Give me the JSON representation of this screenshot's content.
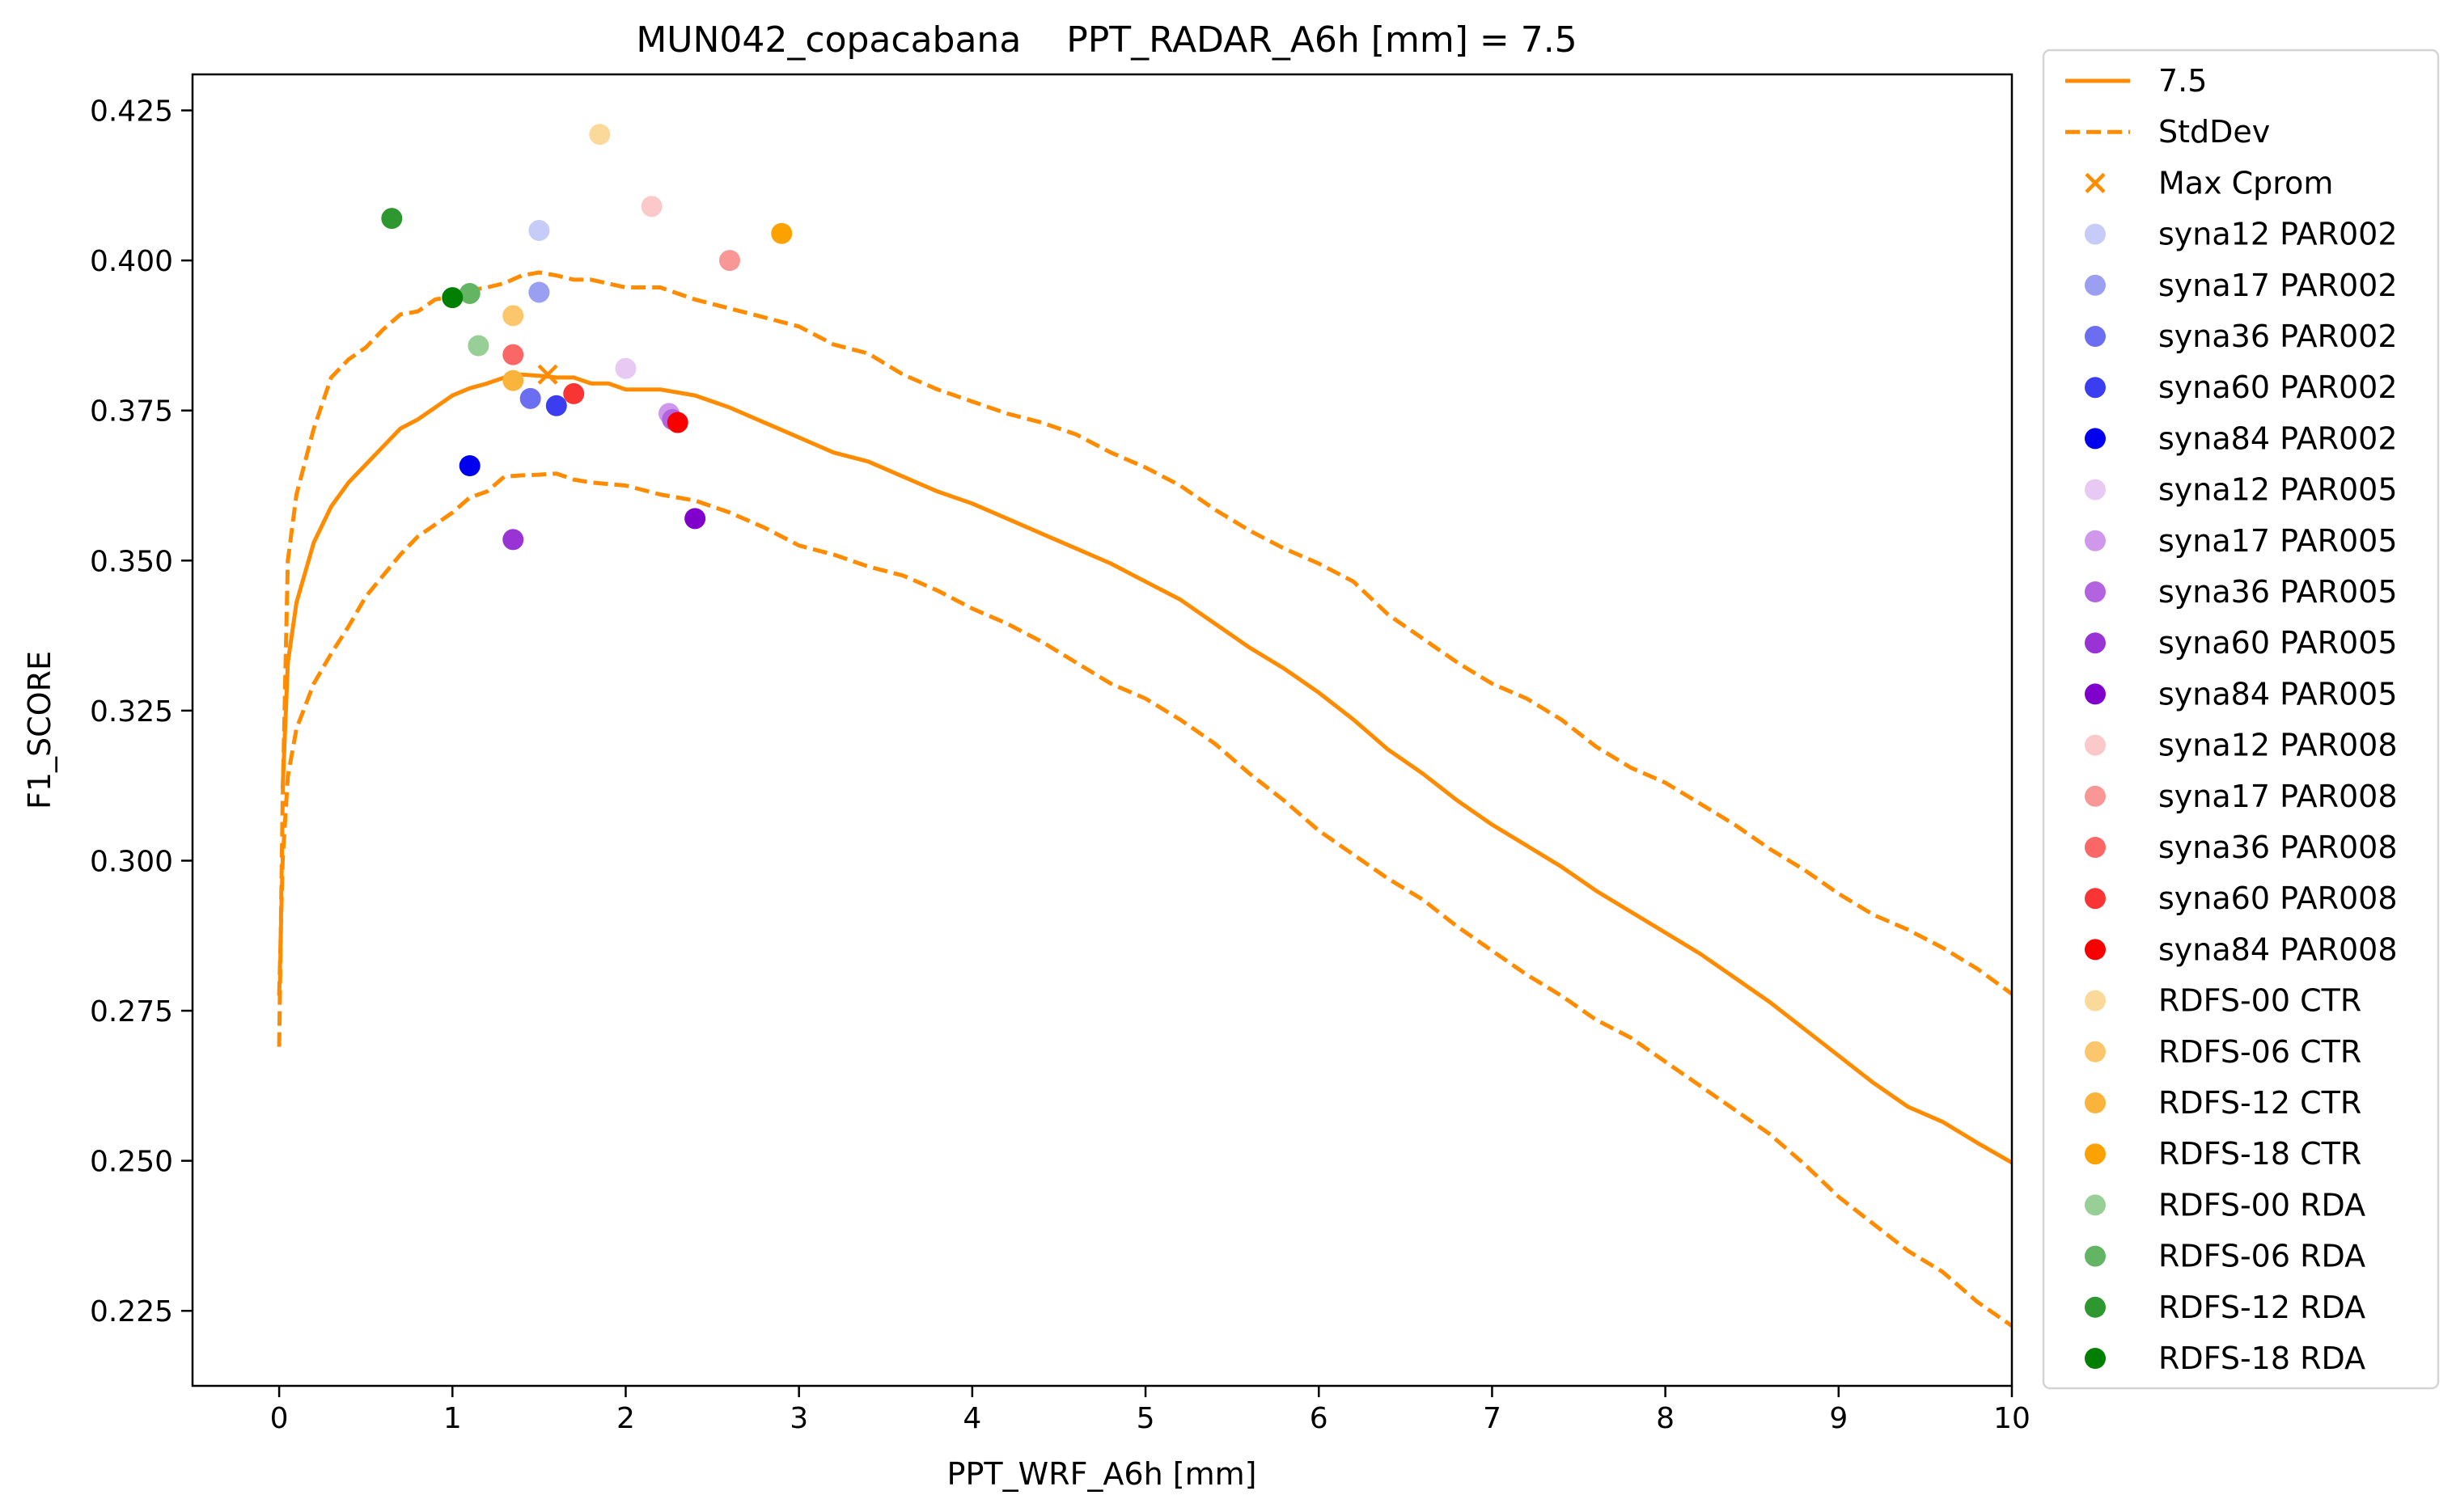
{
  "chart_data": {
    "type": "line",
    "title": "MUN042_copacabana    PPT_RADAR_A6h [mm] = 7.5",
    "xlabel": "PPT_WRF_A6h [mm]",
    "ylabel": "F1_SCORE",
    "xlim": [
      -0.5,
      10
    ],
    "ylim": [
      0.2125,
      0.431
    ],
    "xticks": [
      0,
      1,
      2,
      3,
      4,
      5,
      6,
      7,
      8,
      9,
      10
    ],
    "yticks": [
      0.225,
      0.25,
      0.275,
      0.3,
      0.325,
      0.35,
      0.375,
      0.4,
      0.425
    ],
    "ytick_labels": [
      "0.225",
      "0.250",
      "0.275",
      "0.300",
      "0.325",
      "0.350",
      "0.375",
      "0.400",
      "0.425"
    ],
    "grid": false,
    "legend_position": "outside-right",
    "lines": [
      {
        "name": "7.5",
        "style": "solid",
        "color": "#ff8c00",
        "points": [
          [
            0.02,
            0.312
          ],
          [
            0.05,
            0.333
          ],
          [
            0.1,
            0.343
          ],
          [
            0.2,
            0.353
          ],
          [
            0.3,
            0.359
          ],
          [
            0.4,
            0.363
          ],
          [
            0.5,
            0.366
          ],
          [
            0.6,
            0.369
          ],
          [
            0.7,
            0.372
          ],
          [
            0.8,
            0.3735
          ],
          [
            0.9,
            0.3755
          ],
          [
            1.0,
            0.3775
          ],
          [
            1.1,
            0.3787
          ],
          [
            1.2,
            0.3795
          ],
          [
            1.3,
            0.3805
          ],
          [
            1.4,
            0.381
          ],
          [
            1.5,
            0.3808
          ],
          [
            1.6,
            0.3805
          ],
          [
            1.7,
            0.3805
          ],
          [
            1.8,
            0.3795
          ],
          [
            1.9,
            0.3795
          ],
          [
            2.0,
            0.3785
          ],
          [
            2.2,
            0.3785
          ],
          [
            2.4,
            0.3775
          ],
          [
            2.6,
            0.3755
          ],
          [
            2.8,
            0.373
          ],
          [
            3.0,
            0.3705
          ],
          [
            3.2,
            0.368
          ],
          [
            3.4,
            0.3665
          ],
          [
            3.6,
            0.364
          ],
          [
            3.8,
            0.3615
          ],
          [
            4.0,
            0.3595
          ],
          [
            4.2,
            0.357
          ],
          [
            4.4,
            0.3545
          ],
          [
            4.6,
            0.352
          ],
          [
            4.8,
            0.3495
          ],
          [
            5.0,
            0.3465
          ],
          [
            5.2,
            0.3435
          ],
          [
            5.4,
            0.3395
          ],
          [
            5.6,
            0.3355
          ],
          [
            5.8,
            0.332
          ],
          [
            6.0,
            0.328
          ],
          [
            6.2,
            0.3235
          ],
          [
            6.4,
            0.3185
          ],
          [
            6.6,
            0.3145
          ],
          [
            6.8,
            0.31
          ],
          [
            7.0,
            0.306
          ],
          [
            7.2,
            0.3025
          ],
          [
            7.4,
            0.299
          ],
          [
            7.6,
            0.295
          ],
          [
            7.8,
            0.2915
          ],
          [
            8.0,
            0.288
          ],
          [
            8.2,
            0.2845
          ],
          [
            8.4,
            0.2805
          ],
          [
            8.6,
            0.2765
          ],
          [
            8.8,
            0.272
          ],
          [
            9.0,
            0.2675
          ],
          [
            9.2,
            0.263
          ],
          [
            9.4,
            0.259
          ],
          [
            9.6,
            0.2565
          ],
          [
            9.8,
            0.253
          ],
          [
            10.0,
            0.2497
          ]
        ]
      },
      {
        "name": "StdDev",
        "style": "dashed",
        "color": "#ff8c00",
        "points": [
          [
            0.0,
            0.269
          ],
          [
            0.02,
            0.31
          ],
          [
            0.05,
            0.35
          ],
          [
            0.1,
            0.361
          ],
          [
            0.2,
            0.372
          ],
          [
            0.3,
            0.3805
          ],
          [
            0.4,
            0.3835
          ],
          [
            0.5,
            0.3855
          ],
          [
            0.6,
            0.3885
          ],
          [
            0.7,
            0.391
          ],
          [
            0.8,
            0.3915
          ],
          [
            0.9,
            0.3935
          ],
          [
            1.0,
            0.394
          ],
          [
            1.1,
            0.395
          ],
          [
            1.2,
            0.3955
          ],
          [
            1.3,
            0.3962
          ],
          [
            1.4,
            0.3975
          ],
          [
            1.5,
            0.398
          ],
          [
            1.6,
            0.3975
          ],
          [
            1.7,
            0.3968
          ],
          [
            1.8,
            0.3968
          ],
          [
            2.0,
            0.3955
          ],
          [
            2.2,
            0.3955
          ],
          [
            2.4,
            0.3935
          ],
          [
            2.6,
            0.392
          ],
          [
            2.8,
            0.3905
          ],
          [
            3.0,
            0.389
          ],
          [
            3.2,
            0.386
          ],
          [
            3.4,
            0.3845
          ],
          [
            3.6,
            0.381
          ],
          [
            3.8,
            0.3785
          ],
          [
            4.0,
            0.3765
          ],
          [
            4.2,
            0.3745
          ],
          [
            4.4,
            0.373
          ],
          [
            4.6,
            0.371
          ],
          [
            4.8,
            0.368
          ],
          [
            5.0,
            0.3655
          ],
          [
            5.2,
            0.3625
          ],
          [
            5.4,
            0.3585
          ],
          [
            5.6,
            0.355
          ],
          [
            5.8,
            0.352
          ],
          [
            6.0,
            0.3495
          ],
          [
            6.2,
            0.3465
          ],
          [
            6.4,
            0.341
          ],
          [
            6.6,
            0.337
          ],
          [
            6.8,
            0.333
          ],
          [
            7.0,
            0.3295
          ],
          [
            7.2,
            0.327
          ],
          [
            7.4,
            0.3235
          ],
          [
            7.6,
            0.319
          ],
          [
            7.8,
            0.3155
          ],
          [
            8.0,
            0.313
          ],
          [
            8.2,
            0.3095
          ],
          [
            8.4,
            0.306
          ],
          [
            8.6,
            0.302
          ],
          [
            8.8,
            0.2985
          ],
          [
            9.0,
            0.2945
          ],
          [
            9.2,
            0.291
          ],
          [
            9.4,
            0.2885
          ],
          [
            9.6,
            0.2855
          ],
          [
            9.8,
            0.282
          ],
          [
            10.0,
            0.2778
          ]
        ]
      },
      {
        "name": "",
        "style": "dashed",
        "color": "#ff8c00",
        "points": [
          [
            0.0,
            0.2775
          ],
          [
            0.02,
            0.3
          ],
          [
            0.05,
            0.314
          ],
          [
            0.1,
            0.322
          ],
          [
            0.2,
            0.3295
          ],
          [
            0.3,
            0.3345
          ],
          [
            0.4,
            0.339
          ],
          [
            0.5,
            0.344
          ],
          [
            0.6,
            0.3475
          ],
          [
            0.7,
            0.351
          ],
          [
            0.8,
            0.354
          ],
          [
            0.9,
            0.356
          ],
          [
            1.0,
            0.358
          ],
          [
            1.1,
            0.3605
          ],
          [
            1.2,
            0.3615
          ],
          [
            1.3,
            0.364
          ],
          [
            1.4,
            0.3642
          ],
          [
            1.5,
            0.3643
          ],
          [
            1.6,
            0.3645
          ],
          [
            1.7,
            0.3635
          ],
          [
            1.8,
            0.363
          ],
          [
            2.0,
            0.3625
          ],
          [
            2.2,
            0.361
          ],
          [
            2.4,
            0.36
          ],
          [
            2.6,
            0.358
          ],
          [
            2.8,
            0.3555
          ],
          [
            3.0,
            0.3525
          ],
          [
            3.2,
            0.351
          ],
          [
            3.4,
            0.349
          ],
          [
            3.6,
            0.3475
          ],
          [
            3.8,
            0.345
          ],
          [
            4.0,
            0.342
          ],
          [
            4.2,
            0.3395
          ],
          [
            4.4,
            0.3365
          ],
          [
            4.6,
            0.333
          ],
          [
            4.8,
            0.3295
          ],
          [
            5.0,
            0.327
          ],
          [
            5.2,
            0.3235
          ],
          [
            5.4,
            0.3195
          ],
          [
            5.6,
            0.3145
          ],
          [
            5.8,
            0.31
          ],
          [
            6.0,
            0.305
          ],
          [
            6.2,
            0.301
          ],
          [
            6.4,
            0.297
          ],
          [
            6.6,
            0.2935
          ],
          [
            6.8,
            0.289
          ],
          [
            7.0,
            0.285
          ],
          [
            7.2,
            0.281
          ],
          [
            7.4,
            0.2775
          ],
          [
            7.6,
            0.2735
          ],
          [
            7.8,
            0.2705
          ],
          [
            8.0,
            0.2665
          ],
          [
            8.2,
            0.2625
          ],
          [
            8.4,
            0.2585
          ],
          [
            8.6,
            0.2545
          ],
          [
            8.8,
            0.2495
          ],
          [
            9.0,
            0.244
          ],
          [
            9.2,
            0.2395
          ],
          [
            9.4,
            0.235
          ],
          [
            9.6,
            0.2315
          ],
          [
            9.8,
            0.2265
          ],
          [
            10.0,
            0.2225
          ]
        ]
      }
    ],
    "max_cprom": {
      "name": "Max Cprom",
      "x": 1.55,
      "y": 0.381,
      "color": "#ff8c00"
    },
    "scatter": [
      {
        "name": "syna12 PAR002",
        "x": 1.5,
        "y": 0.405,
        "color": "#c7cbf7"
      },
      {
        "name": "syna17 PAR002",
        "x": 1.5,
        "y": 0.3947,
        "color": "#9b9ff2"
      },
      {
        "name": "syna36 PAR002",
        "x": 1.45,
        "y": 0.377,
        "color": "#6b6ef0"
      },
      {
        "name": "syna60 PAR002",
        "x": 1.6,
        "y": 0.3758,
        "color": "#3b3df0"
      },
      {
        "name": "syna84 PAR002",
        "x": 1.1,
        "y": 0.3658,
        "color": "#0000ee"
      },
      {
        "name": "syna12 PAR005",
        "x": 2.0,
        "y": 0.382,
        "color": "#e7c9f3"
      },
      {
        "name": "syna17 PAR005",
        "x": 2.25,
        "y": 0.3745,
        "color": "#cf98ea"
      },
      {
        "name": "syna36 PAR005",
        "x": 2.27,
        "y": 0.3735,
        "color": "#b363df"
      },
      {
        "name": "syna60 PAR005",
        "x": 1.35,
        "y": 0.3535,
        "color": "#9a33d4"
      },
      {
        "name": "syna84 PAR005",
        "x": 2.4,
        "y": 0.357,
        "color": "#8000cc"
      },
      {
        "name": "syna12 PAR008",
        "x": 2.15,
        "y": 0.409,
        "color": "#fbc9c9"
      },
      {
        "name": "syna17 PAR008",
        "x": 2.6,
        "y": 0.4,
        "color": "#f99797"
      },
      {
        "name": "syna36 PAR008",
        "x": 1.35,
        "y": 0.3843,
        "color": "#f96767"
      },
      {
        "name": "syna60 PAR008",
        "x": 1.7,
        "y": 0.3778,
        "color": "#f83434"
      },
      {
        "name": "syna84 PAR008",
        "x": 2.3,
        "y": 0.373,
        "color": "#f80000"
      },
      {
        "name": "RDFS-00 CTR",
        "x": 1.85,
        "y": 0.421,
        "color": "#fbd99b"
      },
      {
        "name": "RDFS-06 CTR",
        "x": 1.35,
        "y": 0.3908,
        "color": "#fbc66c"
      },
      {
        "name": "RDFS-12 CTR",
        "x": 1.35,
        "y": 0.38,
        "color": "#fbb43b"
      },
      {
        "name": "RDFS-18 CTR",
        "x": 2.9,
        "y": 0.4045,
        "color": "#fba200"
      },
      {
        "name": "RDFS-00 RDA",
        "x": 1.15,
        "y": 0.3858,
        "color": "#97cf97"
      },
      {
        "name": "RDFS-06 RDA",
        "x": 1.1,
        "y": 0.3945,
        "color": "#63b463"
      },
      {
        "name": "RDFS-12 RDA",
        "x": 0.65,
        "y": 0.407,
        "color": "#2f972f"
      },
      {
        "name": "RDFS-18 RDA",
        "x": 1.0,
        "y": 0.3938,
        "color": "#007f00"
      }
    ]
  }
}
